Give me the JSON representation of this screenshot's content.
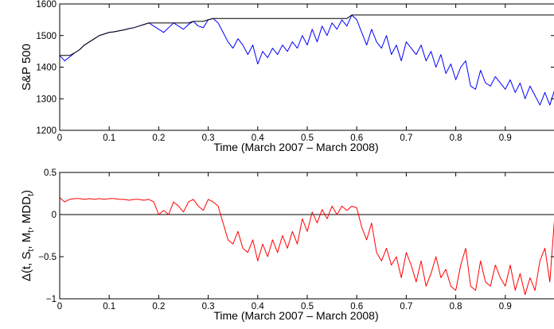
{
  "chart_data": [
    {
      "type": "line",
      "xlabel": "Time (March 2007 – March 2008)",
      "ylabel": "S&P 500",
      "xlim": [
        0,
        1
      ],
      "ylim": [
        1200,
        1600
      ],
      "xticks": [
        0,
        0.1,
        0.2,
        0.3,
        0.4,
        0.5,
        0.6,
        0.7,
        0.8,
        0.9
      ],
      "yticks": [
        1200,
        1300,
        1400,
        1500,
        1600
      ],
      "grid": false,
      "series": [
        {
          "color": "#0000ff",
          "x": [
            0,
            0.01,
            0.02,
            0.03,
            0.04,
            0.05,
            0.06,
            0.07,
            0.08,
            0.09,
            0.1,
            0.11,
            0.12,
            0.13,
            0.14,
            0.15,
            0.16,
            0.17,
            0.18,
            0.19,
            0.2,
            0.21,
            0.22,
            0.23,
            0.24,
            0.25,
            0.26,
            0.27,
            0.28,
            0.29,
            0.3,
            0.31,
            0.32,
            0.33,
            0.34,
            0.35,
            0.36,
            0.37,
            0.38,
            0.39,
            0.4,
            0.41,
            0.42,
            0.43,
            0.44,
            0.45,
            0.46,
            0.47,
            0.48,
            0.49,
            0.5,
            0.51,
            0.52,
            0.53,
            0.54,
            0.55,
            0.56,
            0.57,
            0.58,
            0.59,
            0.6,
            0.61,
            0.62,
            0.63,
            0.64,
            0.65,
            0.66,
            0.67,
            0.68,
            0.69,
            0.7,
            0.71,
            0.72,
            0.73,
            0.74,
            0.75,
            0.76,
            0.77,
            0.78,
            0.79,
            0.8,
            0.81,
            0.82,
            0.83,
            0.84,
            0.85,
            0.86,
            0.87,
            0.88,
            0.89,
            0.9,
            0.91,
            0.92,
            0.93,
            0.94,
            0.95,
            0.96,
            0.97,
            0.98,
            0.99,
            1.0
          ],
          "y": [
            1437,
            1420,
            1432,
            1445,
            1455,
            1470,
            1480,
            1490,
            1500,
            1505,
            1510,
            1512,
            1515,
            1518,
            1522,
            1525,
            1530,
            1535,
            1540,
            1530,
            1520,
            1510,
            1525,
            1540,
            1530,
            1520,
            1535,
            1545,
            1530,
            1525,
            1550,
            1554,
            1540,
            1510,
            1480,
            1460,
            1490,
            1470,
            1440,
            1470,
            1410,
            1450,
            1430,
            1460,
            1440,
            1470,
            1450,
            1480,
            1460,
            1500,
            1470,
            1520,
            1480,
            1530,
            1500,
            1540,
            1520,
            1550,
            1530,
            1565,
            1550,
            1510,
            1470,
            1520,
            1480,
            1460,
            1500,
            1440,
            1470,
            1420,
            1480,
            1460,
            1440,
            1470,
            1420,
            1450,
            1400,
            1440,
            1380,
            1410,
            1360,
            1400,
            1420,
            1340,
            1330,
            1390,
            1350,
            1340,
            1370,
            1350,
            1330,
            1360,
            1320,
            1350,
            1300,
            1340,
            1310,
            1280,
            1320,
            1280,
            1330
          ]
        },
        {
          "color": "#000000",
          "x": [
            0,
            0.01,
            0.02,
            0.03,
            0.04,
            0.05,
            0.06,
            0.07,
            0.08,
            0.09,
            0.1,
            0.11,
            0.12,
            0.13,
            0.14,
            0.15,
            0.16,
            0.17,
            0.18,
            0.19,
            0.2,
            0.21,
            0.22,
            0.23,
            0.24,
            0.25,
            0.26,
            0.27,
            0.28,
            0.29,
            0.3,
            0.31,
            0.32,
            0.33,
            0.34,
            0.35,
            0.36,
            0.37,
            0.38,
            0.39,
            0.4,
            0.41,
            0.42,
            0.43,
            0.44,
            0.45,
            0.46,
            0.47,
            0.48,
            0.49,
            0.5,
            0.51,
            0.52,
            0.53,
            0.54,
            0.55,
            0.56,
            0.57,
            0.58,
            0.59,
            0.6,
            0.61,
            0.62,
            0.63,
            0.64,
            0.65,
            0.66,
            0.67,
            0.68,
            0.69,
            0.7,
            0.71,
            0.72,
            0.73,
            0.74,
            0.75,
            0.76,
            0.77,
            0.78,
            0.79,
            0.8,
            0.81,
            0.82,
            0.83,
            0.84,
            0.85,
            0.86,
            0.87,
            0.88,
            0.89,
            0.9,
            0.91,
            0.92,
            0.93,
            0.94,
            0.95,
            0.96,
            0.97,
            0.98,
            0.99,
            1.0
          ],
          "y": [
            1437,
            1437,
            1437,
            1445,
            1455,
            1470,
            1480,
            1490,
            1500,
            1505,
            1510,
            1512,
            1515,
            1518,
            1522,
            1525,
            1530,
            1535,
            1540,
            1540,
            1540,
            1540,
            1540,
            1540,
            1540,
            1540,
            1540,
            1545,
            1545,
            1545,
            1550,
            1554,
            1554,
            1554,
            1554,
            1554,
            1554,
            1554,
            1554,
            1554,
            1554,
            1554,
            1554,
            1554,
            1554,
            1554,
            1554,
            1554,
            1554,
            1554,
            1554,
            1554,
            1554,
            1554,
            1554,
            1554,
            1554,
            1554,
            1554,
            1565,
            1565,
            1565,
            1565,
            1565,
            1565,
            1565,
            1565,
            1565,
            1565,
            1565,
            1565,
            1565,
            1565,
            1565,
            1565,
            1565,
            1565,
            1565,
            1565,
            1565,
            1565,
            1565,
            1565,
            1565,
            1565,
            1565,
            1565,
            1565,
            1565,
            1565,
            1565,
            1565,
            1565,
            1565,
            1565,
            1565,
            1565,
            1565,
            1565,
            1565,
            1565
          ]
        }
      ]
    },
    {
      "type": "line",
      "xlabel": "Time (March 2007 – March 2008)",
      "ylabel": "Δ(t, S_t, M_t, MDD_t)",
      "xlim": [
        0,
        1
      ],
      "ylim": [
        -1,
        0.5
      ],
      "xticks": [
        0,
        0.1,
        0.2,
        0.3,
        0.4,
        0.5,
        0.6,
        0.7,
        0.8,
        0.9
      ],
      "yticks": [
        -1,
        -0.5,
        0,
        0.5
      ],
      "ytick_labels": [
        "−1",
        "−0.5",
        "0",
        "0.5"
      ],
      "reference_line": 0,
      "grid": false,
      "series": [
        {
          "color": "#ff0000",
          "x": [
            0,
            0.01,
            0.02,
            0.03,
            0.04,
            0.05,
            0.06,
            0.07,
            0.08,
            0.09,
            0.1,
            0.11,
            0.12,
            0.13,
            0.14,
            0.15,
            0.16,
            0.17,
            0.18,
            0.19,
            0.2,
            0.21,
            0.22,
            0.23,
            0.24,
            0.25,
            0.26,
            0.27,
            0.28,
            0.29,
            0.3,
            0.31,
            0.32,
            0.33,
            0.34,
            0.35,
            0.36,
            0.37,
            0.38,
            0.39,
            0.4,
            0.41,
            0.42,
            0.43,
            0.44,
            0.45,
            0.46,
            0.47,
            0.48,
            0.49,
            0.5,
            0.51,
            0.52,
            0.53,
            0.54,
            0.55,
            0.56,
            0.57,
            0.58,
            0.59,
            0.6,
            0.61,
            0.62,
            0.63,
            0.64,
            0.65,
            0.66,
            0.67,
            0.68,
            0.69,
            0.7,
            0.71,
            0.72,
            0.73,
            0.74,
            0.75,
            0.76,
            0.77,
            0.78,
            0.79,
            0.8,
            0.81,
            0.82,
            0.83,
            0.84,
            0.85,
            0.86,
            0.87,
            0.88,
            0.89,
            0.9,
            0.91,
            0.92,
            0.93,
            0.94,
            0.95,
            0.96,
            0.97,
            0.98,
            0.99,
            1.0
          ],
          "y": [
            0.2,
            0.15,
            0.18,
            0.19,
            0.19,
            0.18,
            0.19,
            0.18,
            0.19,
            0.18,
            0.19,
            0.19,
            0.18,
            0.18,
            0.17,
            0.18,
            0.18,
            0.17,
            0.18,
            0.15,
            0.0,
            0.05,
            0.0,
            0.15,
            0.1,
            0.03,
            0.15,
            0.18,
            0.1,
            0.05,
            0.18,
            0.15,
            0.1,
            -0.1,
            -0.3,
            -0.35,
            -0.2,
            -0.4,
            -0.45,
            -0.3,
            -0.55,
            -0.35,
            -0.5,
            -0.3,
            -0.45,
            -0.25,
            -0.4,
            -0.2,
            -0.35,
            -0.05,
            -0.2,
            0.03,
            -0.1,
            0.06,
            -0.05,
            0.1,
            0.0,
            0.1,
            0.05,
            0.1,
            0.08,
            -0.15,
            -0.3,
            -0.1,
            -0.45,
            -0.55,
            -0.4,
            -0.6,
            -0.5,
            -0.75,
            -0.45,
            -0.6,
            -0.8,
            -0.55,
            -0.85,
            -0.7,
            -0.5,
            -0.75,
            -0.65,
            -0.85,
            -0.9,
            -0.6,
            -0.4,
            -0.85,
            -0.9,
            -0.55,
            -0.8,
            -0.85,
            -0.6,
            -0.75,
            -0.85,
            -0.6,
            -0.9,
            -0.7,
            -0.95,
            -0.75,
            -0.9,
            -0.55,
            -0.4,
            -0.8,
            0.0
          ]
        }
      ]
    }
  ]
}
